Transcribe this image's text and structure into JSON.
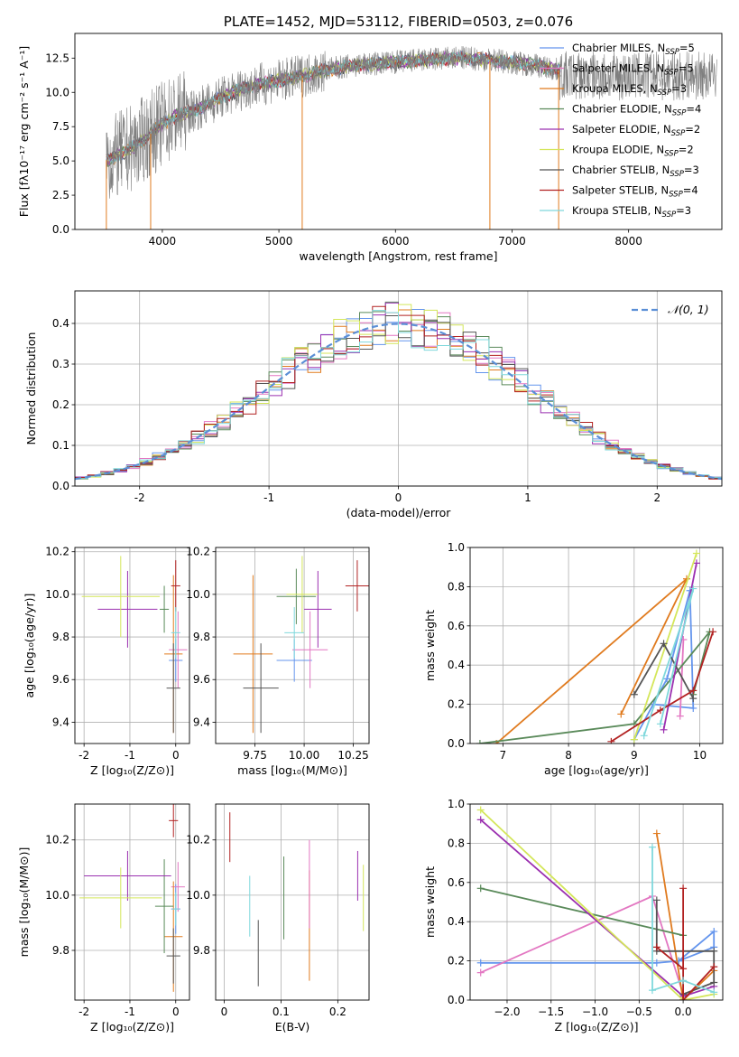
{
  "colors": [
    "#6495ed",
    "#e377c2",
    "#e07b1f",
    "#5a8a5a",
    "#9b30b0",
    "#d4e65a",
    "#555555",
    "#b22222",
    "#7fd8dc"
  ],
  "chart_data": [
    {
      "id": "spectrum",
      "type": "line",
      "title": "PLATE=1452, MJD=53112, FIBERID=0503, z=0.076",
      "xlabel": "wavelength [Angstrom, rest frame]",
      "ylabel": "Flux [fλ10⁻¹⁷ erg cm⁻² s⁻¹ A⁻¹]",
      "xlim": [
        3250,
        8800
      ],
      "ylim": [
        0,
        14.3
      ],
      "xticks": [
        4000,
        5000,
        6000,
        7000,
        8000
      ],
      "yticks": [
        0.0,
        2.5,
        5.0,
        7.5,
        10.0,
        12.5
      ],
      "legend_position": "right",
      "legend": [
        {
          "name": "Chabrier MILES, N",
          "sub": "SSP",
          "eq": "=5"
        },
        {
          "name": "Salpeter MILES, N",
          "sub": "SSP",
          "eq": "=5"
        },
        {
          "name": "Kroupa MILES, N",
          "sub": "SSP",
          "eq": "=3"
        },
        {
          "name": "Chabrier ELODIE, N",
          "sub": "SSP",
          "eq": "=4"
        },
        {
          "name": "Salpeter ELODIE, N",
          "sub": "SSP",
          "eq": "=2"
        },
        {
          "name": "Kroupa ELODIE, N",
          "sub": "SSP",
          "eq": "=2"
        },
        {
          "name": "Chabrier STELIB, N",
          "sub": "SSP",
          "eq": "=3"
        },
        {
          "name": "Salpeter STELIB, N",
          "sub": "SSP",
          "eq": "=4"
        },
        {
          "name": "Kroupa STELIB, N",
          "sub": "SSP",
          "eq": "=3"
        }
      ],
      "continuum": [
        [
          3500,
          5.0
        ],
        [
          3600,
          5.3
        ],
        [
          3700,
          5.8
        ],
        [
          3800,
          6.3
        ],
        [
          3900,
          7.0
        ],
        [
          4000,
          7.7
        ],
        [
          4100,
          8.2
        ],
        [
          4300,
          8.8
        ],
        [
          4500,
          9.6
        ],
        [
          4700,
          10.3
        ],
        [
          4900,
          10.7
        ],
        [
          5100,
          11.0
        ],
        [
          5300,
          11.4
        ],
        [
          5500,
          11.8
        ],
        [
          5700,
          12.0
        ],
        [
          6000,
          12.2
        ],
        [
          6300,
          12.4
        ],
        [
          6600,
          12.5
        ],
        [
          6900,
          12.3
        ],
        [
          7200,
          12.0
        ],
        [
          7400,
          11.6
        ]
      ],
      "glitches": [
        [
          3520,
          0
        ],
        [
          3900,
          0
        ],
        [
          5200,
          0
        ],
        [
          6810,
          0
        ],
        [
          7400,
          0
        ]
      ]
    },
    {
      "id": "residuals",
      "type": "histogram",
      "xlabel": "(data-model)/error",
      "ylabel": "Normed distribution",
      "xlim": [
        -2.5,
        2.5
      ],
      "ylim": [
        0,
        0.48
      ],
      "xticks": [
        -2,
        -1,
        0,
        1,
        2
      ],
      "yticks": [
        0.0,
        0.1,
        0.2,
        0.3,
        0.4
      ],
      "bin_width": 0.1,
      "legend_position": "top-right",
      "legend_label": "𝒩(0, 1)"
    },
    {
      "id": "age-vs-Z",
      "type": "scatter",
      "xlabel": "Z [log₁₀(Z/Z⊙)]",
      "ylabel": "age  [log₁₀(age/yr)]",
      "xlim": [
        -2.2,
        0.3
      ],
      "ylim": [
        9.3,
        10.22
      ],
      "xticks": [
        -2,
        -1,
        0
      ],
      "yticks": [
        9.4,
        9.6,
        9.8,
        10.0,
        10.2
      ],
      "points": [
        {
          "x": 0.0,
          "y": 9.69,
          "xe": 0.15,
          "ye": 0.1,
          "c": 0
        },
        {
          "x": 0.05,
          "y": 9.74,
          "xe": 0.2,
          "ye": 0.18,
          "c": 1
        },
        {
          "x": -0.05,
          "y": 9.72,
          "xe": 0.2,
          "ye": 0.37,
          "c": 2
        },
        {
          "x": -0.25,
          "y": 9.93,
          "xe": 0.1,
          "ye": 0.11,
          "c": 3
        },
        {
          "x": -1.05,
          "y": 9.93,
          "xe": 0.65,
          "ye": 0.18,
          "c": 4
        },
        {
          "x": -1.2,
          "y": 9.99,
          "xe": 0.85,
          "ye": 0.19,
          "c": 5
        },
        {
          "x": -0.05,
          "y": 9.56,
          "xe": 0.15,
          "ye": 0.21,
          "c": 6
        },
        {
          "x": 0.0,
          "y": 10.04,
          "xe": 0.1,
          "ye": 0.12,
          "c": 7
        },
        {
          "x": 0.0,
          "y": 9.82,
          "xe": 0.1,
          "ye": 0.12,
          "c": 8
        }
      ]
    },
    {
      "id": "age-vs-mass",
      "type": "scatter",
      "xlabel": "mass [log₁₀(M/M⊙)]",
      "ylabel": "",
      "xlim": [
        9.55,
        10.33
      ],
      "ylim": [
        9.3,
        10.22
      ],
      "xticks": [
        9.75,
        10.0,
        10.25
      ],
      "xticklabels": [
        "9.75",
        "10.00",
        "10.25"
      ],
      "yticks": [
        9.4,
        9.6,
        9.8,
        10.0,
        10.2
      ],
      "points": [
        {
          "x": 9.95,
          "y": 9.69,
          "xe": 0.09,
          "ye": 0.1,
          "c": 0
        },
        {
          "x": 10.03,
          "y": 9.74,
          "xe": 0.09,
          "ye": 0.18,
          "c": 1
        },
        {
          "x": 9.74,
          "y": 9.72,
          "xe": 0.1,
          "ye": 0.37,
          "c": 2
        },
        {
          "x": 9.96,
          "y": 9.99,
          "xe": 0.1,
          "ye": 0.13,
          "c": 3
        },
        {
          "x": 10.07,
          "y": 9.93,
          "xe": 0.07,
          "ye": 0.18,
          "c": 4
        },
        {
          "x": 9.99,
          "y": 10.0,
          "xe": 0.08,
          "ye": 0.18,
          "c": 5
        },
        {
          "x": 9.78,
          "y": 9.56,
          "xe": 0.09,
          "ye": 0.21,
          "c": 6
        },
        {
          "x": 10.27,
          "y": 10.04,
          "xe": 0.06,
          "ye": 0.12,
          "c": 7
        },
        {
          "x": 9.95,
          "y": 9.82,
          "xe": 0.05,
          "ye": 0.12,
          "c": 8
        }
      ]
    },
    {
      "id": "weight-vs-age",
      "type": "line",
      "xlabel": "age  [log₁₀(age/yr)]",
      "ylabel": "mass weight",
      "xlim": [
        6.5,
        10.35
      ],
      "ylim": [
        0,
        1.0
      ],
      "xticks": [
        7,
        8,
        9,
        10
      ],
      "yticks": [
        0.0,
        0.2,
        0.4,
        0.6,
        0.8,
        1.0
      ],
      "series": [
        {
          "c": 0,
          "pts": [
            [
              9.0,
              0.02
            ],
            [
              9.5,
              0.33
            ],
            [
              9.85,
              0.78
            ],
            [
              9.9,
              0.18
            ],
            [
              9.3,
              0.2
            ]
          ]
        },
        {
          "c": 1,
          "pts": [
            [
              9.7,
              0.14
            ],
            [
              9.75,
              0.53
            ]
          ]
        },
        {
          "c": 2,
          "pts": [
            [
              8.8,
              0.15
            ],
            [
              9.8,
              0.84
            ],
            [
              6.9,
              0.0
            ]
          ]
        },
        {
          "c": 3,
          "pts": [
            [
              6.65,
              0.0
            ],
            [
              9.0,
              0.1
            ],
            [
              10.15,
              0.57
            ],
            [
              9.9,
              0.25
            ]
          ]
        },
        {
          "c": 4,
          "pts": [
            [
              9.45,
              0.07
            ],
            [
              9.95,
              0.92
            ]
          ]
        },
        {
          "c": 5,
          "pts": [
            [
              9.0,
              0.02
            ],
            [
              9.95,
              0.97
            ]
          ]
        },
        {
          "c": 6,
          "pts": [
            [
              9.0,
              0.25
            ],
            [
              9.45,
              0.51
            ],
            [
              9.9,
              0.23
            ]
          ]
        },
        {
          "c": 7,
          "pts": [
            [
              8.65,
              0.01
            ],
            [
              9.4,
              0.17
            ],
            [
              9.9,
              0.27
            ],
            [
              10.2,
              0.57
            ]
          ]
        },
        {
          "c": 8,
          "pts": [
            [
              9.15,
              0.04
            ],
            [
              9.9,
              0.79
            ],
            [
              9.4,
              0.1
            ]
          ]
        }
      ]
    },
    {
      "id": "mass-vs-Z",
      "type": "scatter",
      "xlabel": "Z [log₁₀(Z/Z⊙)]",
      "ylabel": "mass [log₁₀(M/M⊙)]",
      "xlim": [
        -2.2,
        0.3
      ],
      "ylim": [
        9.62,
        10.33
      ],
      "xticks": [
        -2,
        -1,
        0
      ],
      "yticks": [
        9.8,
        10.0,
        10.2
      ],
      "points": [
        {
          "x": 0.0,
          "y": 9.95,
          "xe": 0.1,
          "ye": 0.09,
          "c": 0
        },
        {
          "x": 0.05,
          "y": 10.03,
          "xe": 0.15,
          "ye": 0.09,
          "c": 1
        },
        {
          "x": -0.05,
          "y": 9.85,
          "xe": 0.2,
          "ye": 0.2,
          "c": 2
        },
        {
          "x": -0.25,
          "y": 9.96,
          "xe": 0.2,
          "ye": 0.17,
          "c": 3
        },
        {
          "x": -1.05,
          "y": 10.07,
          "xe": 0.95,
          "ye": 0.09,
          "c": 4
        },
        {
          "x": -1.2,
          "y": 9.99,
          "xe": 0.9,
          "ye": 0.11,
          "c": 5
        },
        {
          "x": -0.05,
          "y": 9.78,
          "xe": 0.15,
          "ye": 0.1,
          "c": 6
        },
        {
          "x": -0.05,
          "y": 10.27,
          "xe": 0.1,
          "ye": 0.06,
          "c": 7
        },
        {
          "x": 0.0,
          "y": 9.95,
          "xe": 0.08,
          "ye": 0.06,
          "c": 8
        }
      ]
    },
    {
      "id": "mass-vs-ebv",
      "type": "errorbar",
      "xlabel": "E(B-V)",
      "ylabel": "",
      "xlim": [
        -0.015,
        0.255
      ],
      "ylim": [
        9.62,
        10.33
      ],
      "xticks": [
        0.0,
        0.1,
        0.2
      ],
      "yticks": [
        9.8,
        10.0,
        10.2
      ],
      "points": [
        {
          "x": 0.01,
          "y": 10.21,
          "ye": 0.09,
          "c": 7
        },
        {
          "x": 0.045,
          "y": 9.96,
          "ye": 0.11,
          "c": 8
        },
        {
          "x": 0.06,
          "y": 9.79,
          "ye": 0.12,
          "c": 6
        },
        {
          "x": 0.105,
          "y": 9.99,
          "ye": 0.15,
          "c": 3
        },
        {
          "x": 0.15,
          "y": 9.89,
          "ye": 0.2,
          "c": 2
        },
        {
          "x": 0.15,
          "y": 10.04,
          "ye": 0.16,
          "c": 1
        },
        {
          "x": 0.235,
          "y": 10.07,
          "ye": 0.09,
          "c": 4
        },
        {
          "x": 0.245,
          "y": 9.99,
          "ye": 0.12,
          "c": 5
        }
      ]
    },
    {
      "id": "weight-vs-Z",
      "type": "line",
      "xlabel": "Z [log₁₀(Z/Z⊙)]",
      "ylabel": "mass weight",
      "xlim": [
        -2.42,
        0.45
      ],
      "ylim": [
        0,
        1.0
      ],
      "xticks": [
        -2.0,
        -1.5,
        -1.0,
        -0.5,
        0.0
      ],
      "xticklabels": [
        "−2.0",
        "−1.5",
        "−1.0",
        "−0.5",
        "0.0"
      ],
      "yticks": [
        0.0,
        0.2,
        0.4,
        0.6,
        0.8,
        1.0
      ],
      "series": [
        {
          "c": 0,
          "pts": [
            [
              -2.3,
              0.19
            ],
            [
              -0.3,
              0.19
            ],
            [
              -0.05,
              0.2
            ],
            [
              0.35,
              0.27
            ],
            [
              0.35,
              0.35
            ],
            [
              -0.05,
              0.2
            ]
          ]
        },
        {
          "c": 1,
          "pts": [
            [
              -2.3,
              0.14
            ],
            [
              -0.35,
              0.53
            ],
            [
              0.0,
              0.03
            ]
          ]
        },
        {
          "c": 2,
          "pts": [
            [
              -0.3,
              0.85
            ],
            [
              0.0,
              0.0
            ],
            [
              0.35,
              0.15
            ]
          ]
        },
        {
          "c": 3,
          "pts": [
            [
              -2.3,
              0.57
            ],
            [
              0.0,
              0.33
            ]
          ]
        },
        {
          "c": 4,
          "pts": [
            [
              -2.3,
              0.92
            ],
            [
              0.0,
              0.02
            ],
            [
              0.35,
              0.07
            ]
          ]
        },
        {
          "c": 5,
          "pts": [
            [
              -2.3,
              0.97
            ],
            [
              0.0,
              0.0
            ],
            [
              0.35,
              0.03
            ]
          ]
        },
        {
          "c": 6,
          "pts": [
            [
              -0.3,
              0.51
            ],
            [
              -0.3,
              0.25
            ],
            [
              0.35,
              0.25
            ],
            [
              0.35,
              0.09
            ],
            [
              0.0,
              0.03
            ]
          ]
        },
        {
          "c": 7,
          "pts": [
            [
              -0.3,
              0.27
            ],
            [
              0.0,
              0.16
            ],
            [
              0.0,
              0.57
            ],
            [
              0.0,
              0.0
            ],
            [
              0.35,
              0.17
            ]
          ]
        },
        {
          "c": 8,
          "pts": [
            [
              -0.35,
              0.78
            ],
            [
              -0.35,
              0.05
            ],
            [
              0.0,
              0.1
            ],
            [
              0.35,
              0.04
            ]
          ]
        }
      ]
    }
  ]
}
